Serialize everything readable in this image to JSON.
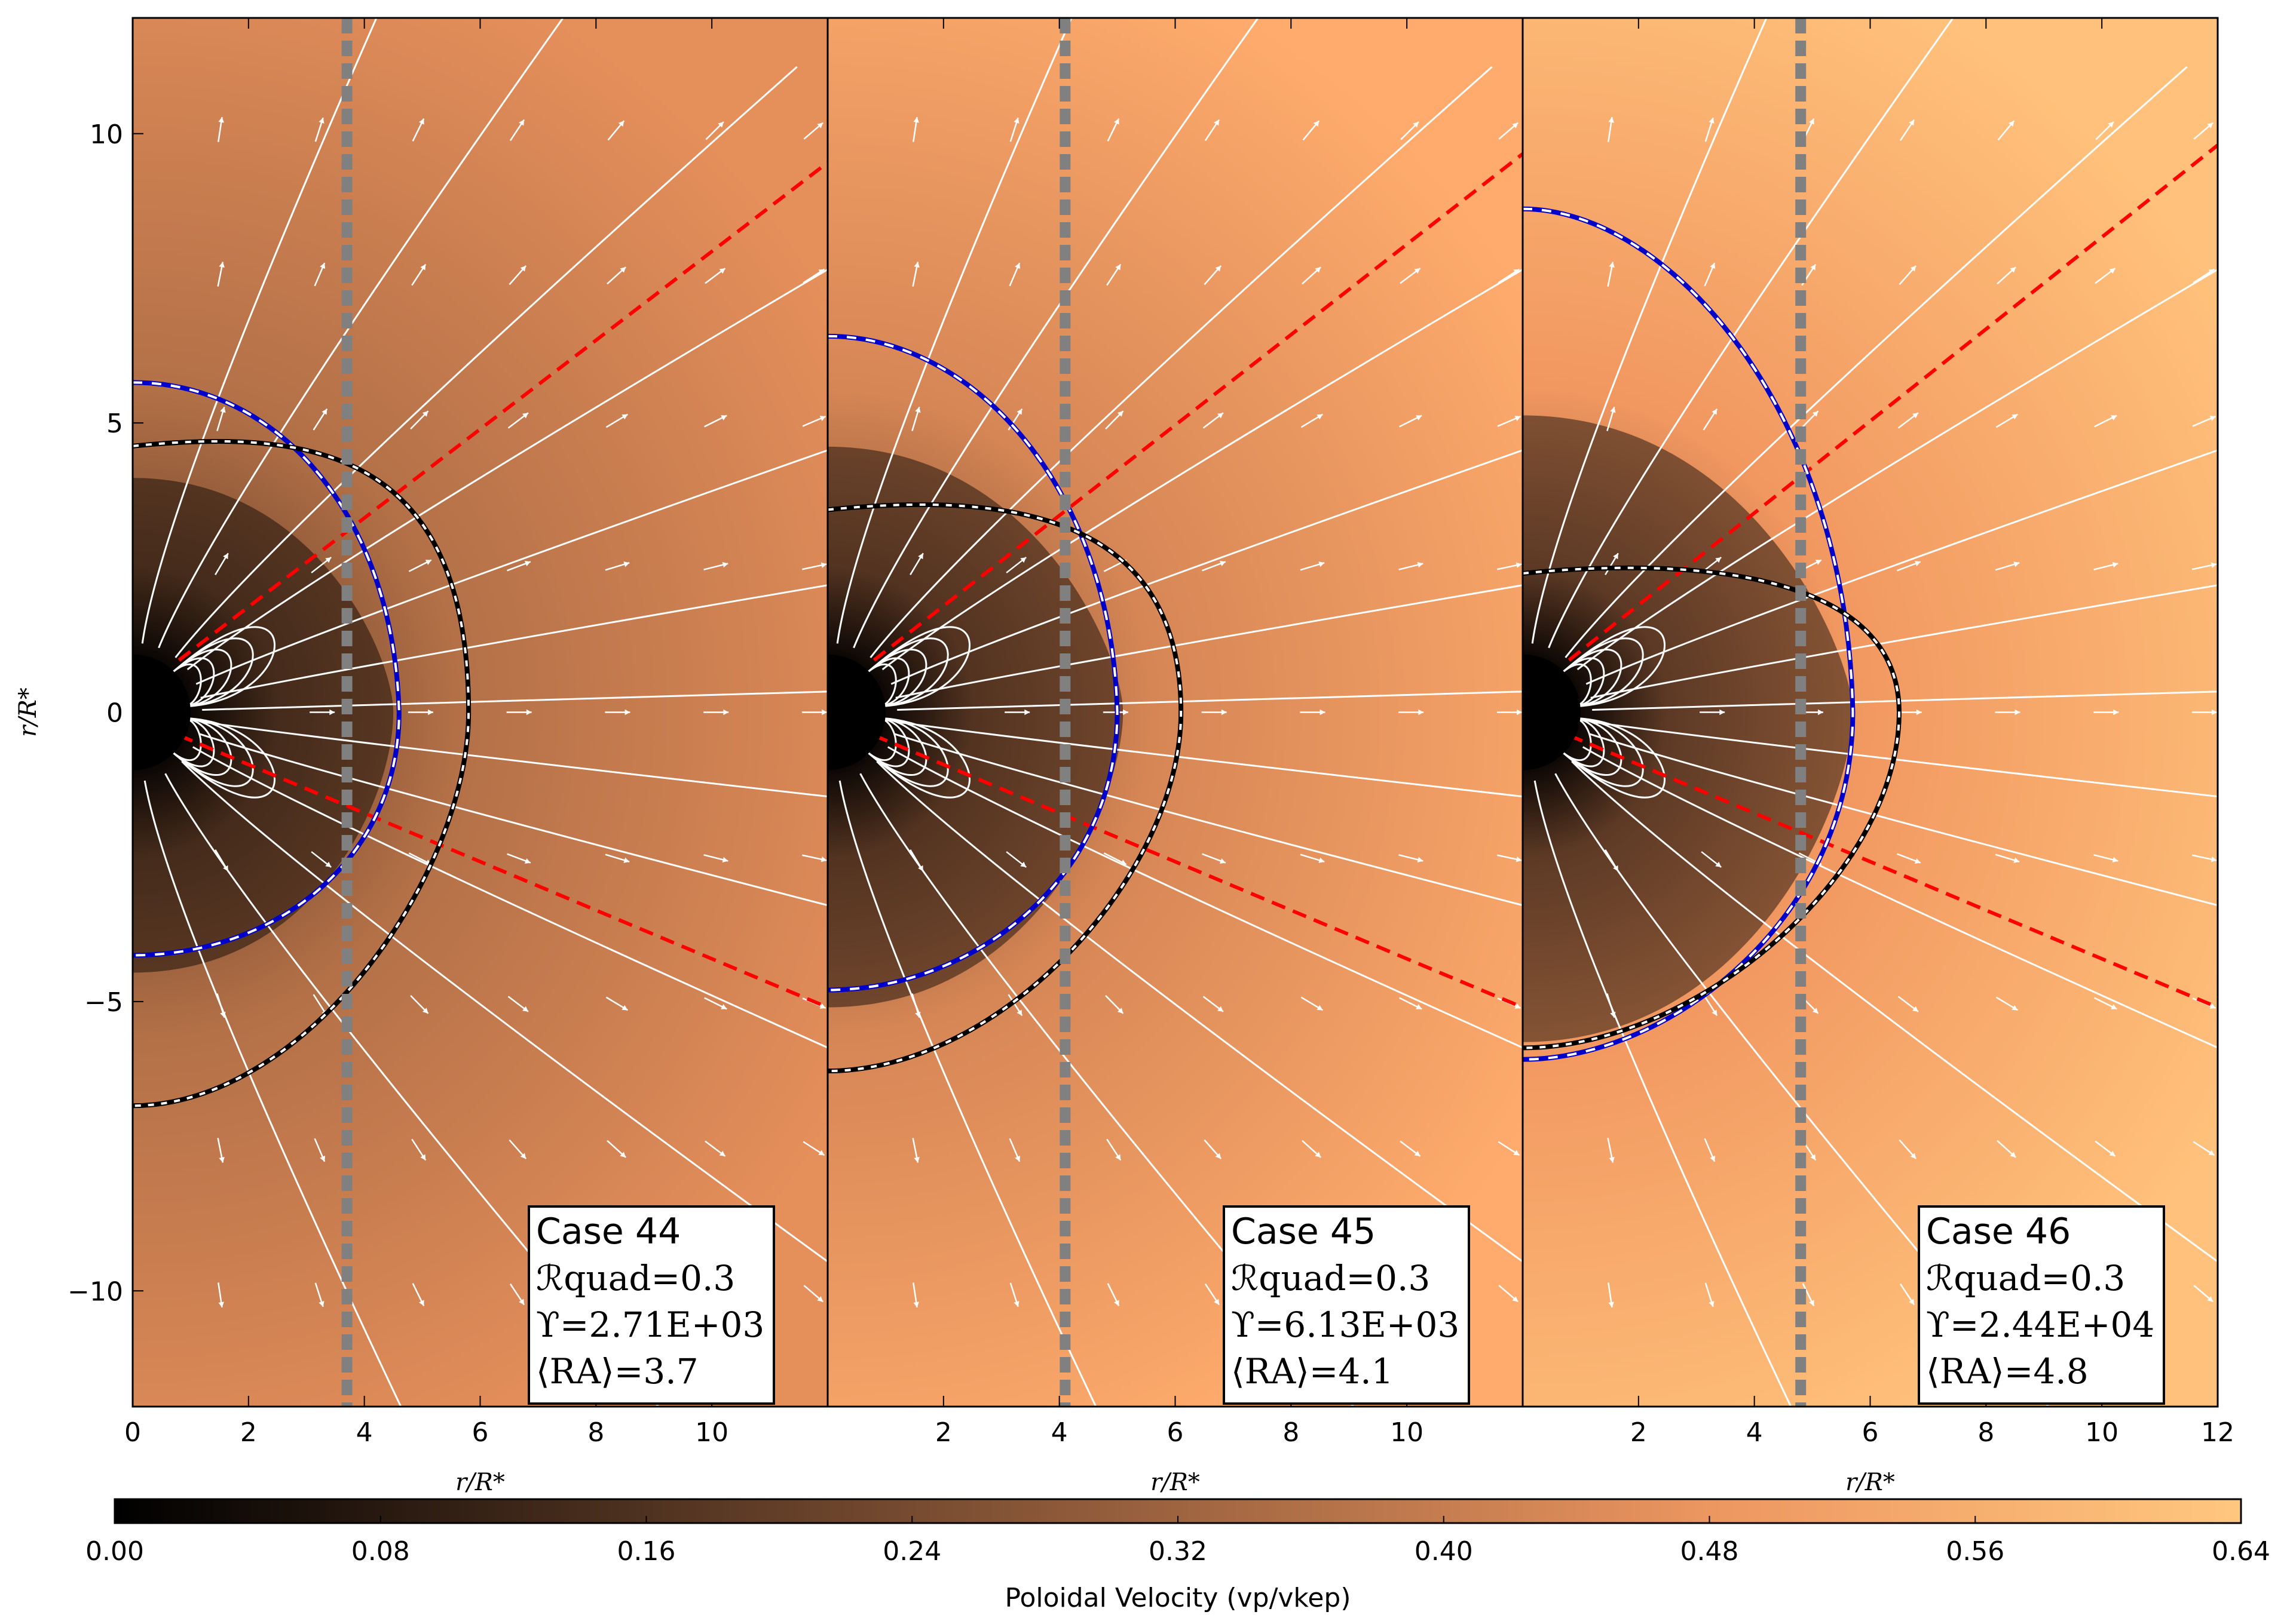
{
  "chart_data": {
    "type": "heatmap",
    "panels": [
      {
        "id": "p44",
        "annotation": [
          "Case 44",
          "ℛquad=0.3",
          "ϒ=2.71E+03",
          "⟨RA⟩=3.7"
        ],
        "alfven_radius": 3.7,
        "vmax": 0.46
      },
      {
        "id": "p45",
        "annotation": [
          "Case 45",
          "ℛquad=0.3",
          "ϒ=6.13E+03",
          "⟨RA⟩=4.1"
        ],
        "alfven_radius": 4.1,
        "vmax": 0.55
      },
      {
        "id": "p46",
        "annotation": [
          "Case 46",
          "ℛquad=0.3",
          "ϒ=2.44E+04",
          "⟨RA⟩=4.8"
        ],
        "alfven_radius": 4.8,
        "vmax": 0.62
      }
    ],
    "x_axis": {
      "label": "r/R*",
      "range": [
        0,
        12
      ],
      "ticks": [
        "0",
        "2",
        "4",
        "6",
        "8",
        "10",
        "12"
      ],
      "panel_ticks": [
        [
          "0",
          "2",
          "4",
          "6",
          "8",
          "10",
          ""
        ],
        [
          "",
          "2",
          "4",
          "6",
          "8",
          "10",
          ""
        ],
        [
          "",
          "2",
          "4",
          "6",
          "8",
          "10",
          "12"
        ]
      ]
    },
    "y_axis": {
      "label": "r/R*",
      "range": [
        -12,
        12
      ],
      "ticks": [
        "10",
        "5",
        "0",
        "−5",
        "−10"
      ],
      "tick_values": [
        10,
        5,
        0,
        -5,
        -10
      ]
    },
    "colorbar": {
      "label": "Poloidal Velocity (vp/vkep)",
      "range": [
        0,
        0.64
      ],
      "ticks": [
        "0.00",
        "0.08",
        "0.16",
        "0.24",
        "0.32",
        "0.40",
        "0.48",
        "0.56",
        "0.64"
      ],
      "colormap": "copper"
    },
    "colors": {
      "alfven_line": "#808080",
      "field_lines": "#ffffff",
      "current_sheet": "#ff0000",
      "blue_surface": "#0000cc",
      "black_surface": "#000000",
      "copper_low": "#000000",
      "copper_high": "#ffc77f"
    }
  }
}
